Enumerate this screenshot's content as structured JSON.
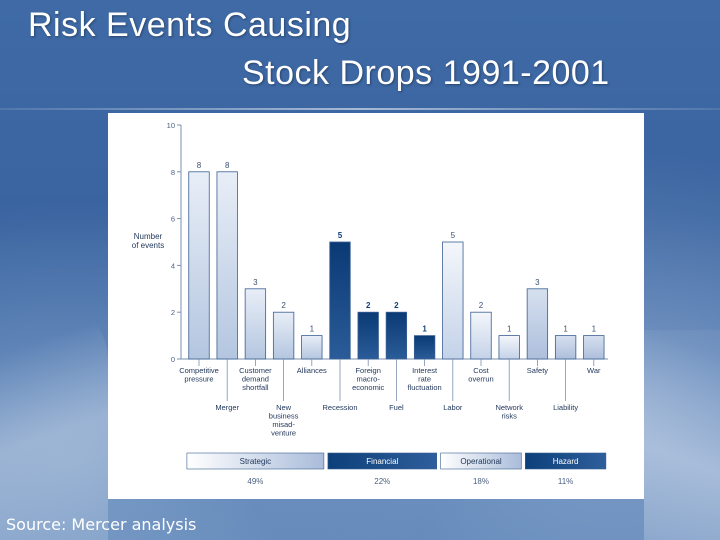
{
  "title": {
    "line1": "Risk Events Causing",
    "line2": "Stock Drops 1991-2001"
  },
  "source": "Source: Mercer analysis",
  "colors": {
    "strategic": "#b9c9e2",
    "financial_dark": "#0d3f7a",
    "operational": "#c6d3e8",
    "hazard": "#c6d3e8",
    "outline": "#3a5f93",
    "background": "#3f6aa6"
  },
  "chart_data": {
    "type": "bar",
    "title": "",
    "ylabel": "Number of events",
    "ylim": [
      0,
      10
    ],
    "yticks": [
      "0",
      "2",
      "4",
      "6",
      "8",
      "10"
    ],
    "categories": [
      "Competitive pressure",
      "Merger",
      "Customer demand shortfall",
      "New business misadventure",
      "Alliances",
      "Recession",
      "Foreign macro-economic",
      "Fuel",
      "Interest rate fluctuation",
      "Labor",
      "Cost overrun",
      "Network risks",
      "Safety",
      "Liability",
      "War"
    ],
    "values": [
      8,
      8,
      3,
      2,
      1,
      5,
      2,
      2,
      1,
      5,
      2,
      1,
      3,
      1,
      1
    ],
    "value_labels": [
      "8",
      "8",
      "3",
      "2",
      "1",
      "5",
      "2",
      "2",
      "1",
      "5",
      "2",
      "1",
      "3",
      "1",
      "1"
    ],
    "bar_groups": [
      "strategic",
      "strategic",
      "strategic",
      "strategic",
      "strategic",
      "financial",
      "financial",
      "financial",
      "financial",
      "operational",
      "operational",
      "operational",
      "hazard",
      "hazard",
      "hazard"
    ],
    "labels_top": [
      {
        "index": 0,
        "lines": [
          "Competitive",
          "pressure"
        ]
      },
      {
        "index": 2,
        "lines": [
          "Customer",
          "demand",
          "shortfall"
        ]
      },
      {
        "index": 4,
        "lines": [
          "Alliances"
        ]
      },
      {
        "index": 6,
        "lines": [
          "Foreign",
          "macro-",
          "economic"
        ]
      },
      {
        "index": 8,
        "lines": [
          "Interest",
          "rate",
          "fluctuation"
        ]
      },
      {
        "index": 10,
        "lines": [
          "Cost",
          "overrun"
        ]
      },
      {
        "index": 12,
        "lines": [
          "Safety"
        ]
      },
      {
        "index": 14,
        "lines": [
          "War"
        ]
      }
    ],
    "labels_bottom": [
      {
        "index": 1,
        "lines": [
          "Merger"
        ]
      },
      {
        "index": 3,
        "lines": [
          "New",
          "business",
          "misad-",
          "venture"
        ]
      },
      {
        "index": 5,
        "lines": [
          "Recession"
        ]
      },
      {
        "index": 7,
        "lines": [
          "Fuel"
        ]
      },
      {
        "index": 9,
        "lines": [
          "Labor"
        ]
      },
      {
        "index": 11,
        "lines": [
          "Network",
          "risks"
        ]
      },
      {
        "index": 13,
        "lines": [
          "Liability"
        ]
      }
    ],
    "groups": [
      {
        "key": "strategic",
        "name": "Strategic",
        "share": "49%"
      },
      {
        "key": "financial",
        "name": "Financial",
        "share": "22%"
      },
      {
        "key": "operational",
        "name": "Operational",
        "share": "18%"
      },
      {
        "key": "hazard",
        "name": "Hazard",
        "share": "11%"
      }
    ]
  }
}
